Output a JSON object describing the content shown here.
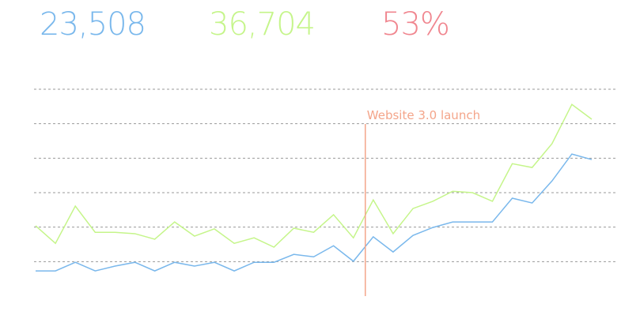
{
  "header": {
    "stats": [
      {
        "text": "23,508",
        "color": "#7ab8ec"
      },
      {
        "text": "36,704",
        "color": "#c5f58a"
      },
      {
        "text": "53%",
        "color": "#f0868f"
      }
    ]
  },
  "chart_data": {
    "type": "line",
    "x": [
      0,
      1,
      2,
      3,
      4,
      5,
      6,
      7,
      8,
      9,
      10,
      11,
      12,
      13,
      14,
      15,
      16,
      17,
      18,
      19,
      20,
      21,
      22,
      23,
      24,
      25,
      26,
      27,
      28
    ],
    "xlim": [
      0,
      28
    ],
    "ylim": [
      0,
      6
    ],
    "yticks": [
      1,
      2,
      3,
      4,
      5,
      6
    ],
    "grid": true,
    "series": [
      {
        "color": "#7ab8ec",
        "values": [
          0.73,
          0.73,
          0.98,
          0.73,
          0.87,
          0.98,
          0.73,
          0.98,
          0.87,
          0.98,
          0.73,
          0.98,
          0.98,
          1.21,
          1.14,
          1.46,
          1.01,
          1.72,
          1.28,
          1.76,
          1.99,
          2.15,
          2.15,
          2.15,
          2.84,
          2.7,
          3.34,
          4.12,
          3.96
        ]
      },
      {
        "color": "#c5f58a",
        "values": [
          2.04,
          1.53,
          2.61,
          1.85,
          1.85,
          1.81,
          1.65,
          2.15,
          1.74,
          1.95,
          1.53,
          1.69,
          1.42,
          1.97,
          1.85,
          2.36,
          1.69,
          2.79,
          1.81,
          2.54,
          2.75,
          3.04,
          3.0,
          2.75,
          3.84,
          3.73,
          4.42,
          5.56,
          5.13
        ]
      }
    ],
    "annotation": {
      "text": "Website 3.0 launch",
      "x": 16.6,
      "color": "#f4a58a"
    }
  }
}
